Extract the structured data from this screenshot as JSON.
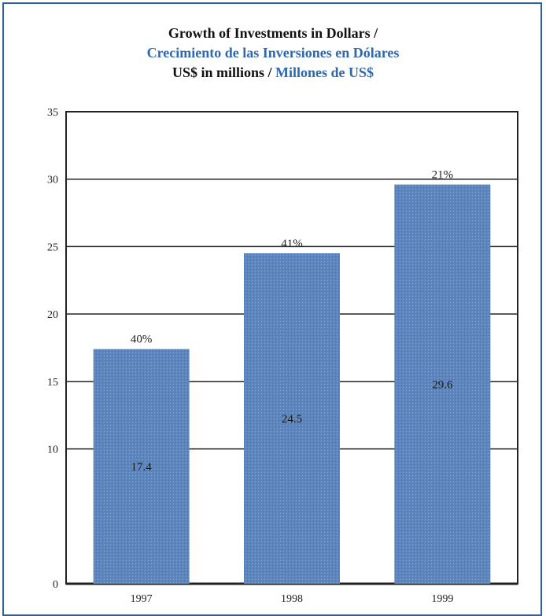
{
  "chart_data": {
    "type": "bar",
    "title": "Growth of Investments in Dollars /",
    "subtitle": "Crecimiento de las Inversiones en Dólares",
    "units_label": "US$ in millions /",
    "units_label_es": "Millones de US$",
    "categories": [
      "1997",
      "1998",
      "1999"
    ],
    "values": [
      17.4,
      24.5,
      29.6
    ],
    "value_labels": [
      "17.4",
      "24.5",
      "29.6"
    ],
    "growth_labels": [
      "40%",
      "41%",
      "21%"
    ],
    "ylim": [
      0,
      35
    ],
    "yticks": [
      0,
      10,
      15,
      20,
      25,
      30,
      35
    ],
    "grid": true,
    "xlabel": "",
    "ylabel": ""
  },
  "colors": {
    "bar": "#5b86c2",
    "title_blue": "#2f68ad",
    "title_dark": "#111111",
    "frame": "#2f5f9e"
  }
}
